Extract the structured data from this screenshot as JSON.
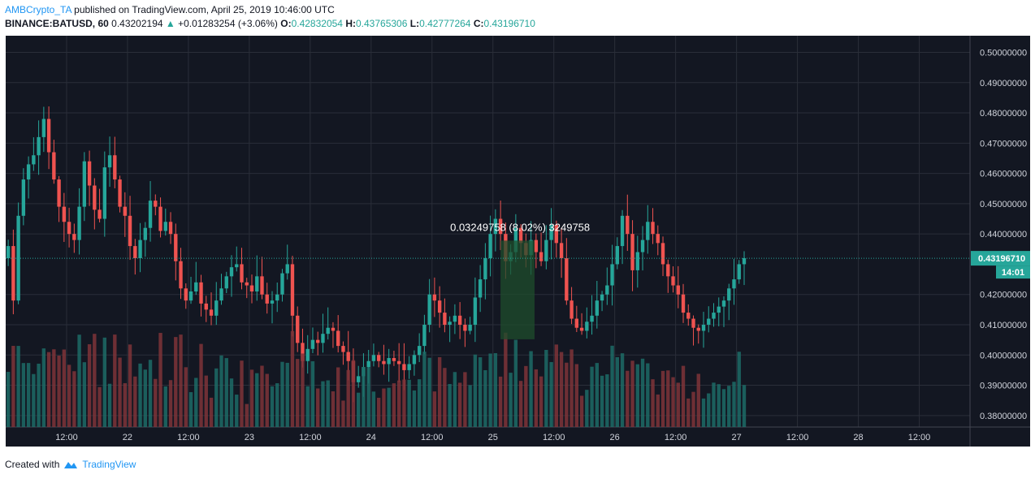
{
  "header": {
    "author": "AMBCrypto_TA",
    "published": "published on TradingView.com, April 25, 2019 10:46:00 UTC",
    "symbol": "BINANCE:BATUSD, 60",
    "last": "0.43202194",
    "change": "+0.01283254 (+3.06%)",
    "o_label": "O:",
    "o": "0.42832054",
    "h_label": "H:",
    "h": "0.43765306",
    "l_label": "L:",
    "l": "0.42777264",
    "c_label": "C:",
    "c": "0.43196710",
    "up_icon": "triangle-up-icon"
  },
  "footer": {
    "created": "Created with",
    "brand": "TradingView",
    "logo_icon": "tradingview-cloud-icon"
  },
  "colors": {
    "background": "#131722",
    "grid": "#2a2e39",
    "up": "#26a69a",
    "down": "#ef5350",
    "up_volume": "#1d6b66",
    "down_volume": "#7f3438",
    "axis_text": "#d1d4dc",
    "price_line": "#26a69a",
    "measure_box": "#1f4d2c"
  },
  "chart_data": {
    "type": "candlestick",
    "y_axis": {
      "range": [
        0.3762,
        0.5055
      ],
      "ticks": [
        "0.50000000",
        "0.49000000",
        "0.48000000",
        "0.47000000",
        "0.46000000",
        "0.45000000",
        "0.44000000",
        "0.42000000",
        "0.41000000",
        "0.40000000",
        "0.39000000",
        "0.38000000"
      ],
      "position": "right"
    },
    "x_axis": {
      "range_hours": [
        0,
        190
      ],
      "ticks": [
        {
          "label": "12:00",
          "hour": 12
        },
        {
          "label": "22",
          "hour": 24
        },
        {
          "label": "12:00",
          "hour": 36
        },
        {
          "label": "23",
          "hour": 48
        },
        {
          "label": "12:00",
          "hour": 60
        },
        {
          "label": "24",
          "hour": 72
        },
        {
          "label": "12:00",
          "hour": 84
        },
        {
          "label": "25",
          "hour": 96
        },
        {
          "label": "12:00",
          "hour": 108
        },
        {
          "label": "26",
          "hour": 120
        },
        {
          "label": "12:00",
          "hour": 132
        },
        {
          "label": "27",
          "hour": 144
        },
        {
          "label": "12:00",
          "hour": 156
        },
        {
          "label": "28",
          "hour": 168
        },
        {
          "label": "12:00",
          "hour": 180
        }
      ]
    },
    "grid": true,
    "last_price": {
      "value": 0.4319671,
      "label": "0.43196710",
      "countdown": "14:01"
    },
    "measure": {
      "start_hour": 97.5,
      "end_hour": 104.2,
      "low": 0.4052,
      "high": 0.4378,
      "label": "0.03249758 (8.02%) 3249758"
    },
    "candles_hourly": {
      "description": "BINANCE:BATUSD 60-minute candles, [open, high, low, close] per hour",
      "close": [
        0.436,
        0.418,
        0.446,
        0.458,
        0.463,
        0.466,
        0.472,
        0.478,
        0.467,
        0.458,
        0.449,
        0.444,
        0.44,
        0.438,
        0.449,
        0.464,
        0.456,
        0.448,
        0.445,
        0.462,
        0.466,
        0.458,
        0.449,
        0.446,
        0.436,
        0.432,
        0.438,
        0.442,
        0.451,
        0.449,
        0.441,
        0.444,
        0.44,
        0.431,
        0.422,
        0.418,
        0.421,
        0.424,
        0.417,
        0.415,
        0.413,
        0.418,
        0.422,
        0.426,
        0.429,
        0.43,
        0.424,
        0.423,
        0.421,
        0.426,
        0.42,
        0.417,
        0.418,
        0.42,
        0.427,
        0.43,
        0.413,
        0.404,
        0.398,
        0.402,
        0.405,
        0.404,
        0.407,
        0.409,
        0.408,
        0.403,
        0.401,
        0.398,
        0.391,
        0.393,
        0.396,
        0.398,
        0.4,
        0.398,
        0.397,
        0.399,
        0.398,
        0.397,
        0.395,
        0.397,
        0.4,
        0.403,
        0.41,
        0.42,
        0.418,
        0.414,
        0.41,
        0.411,
        0.413,
        0.41,
        0.408,
        0.41,
        0.419,
        0.425,
        0.432,
        0.44,
        0.445,
        0.44,
        0.431,
        0.434,
        0.442,
        0.437,
        0.433,
        0.438,
        0.434,
        0.431,
        0.438,
        0.443,
        0.437,
        0.432,
        0.418,
        0.412,
        0.409,
        0.408,
        0.411,
        0.413,
        0.418,
        0.42,
        0.423,
        0.43,
        0.436,
        0.446,
        0.44,
        0.428,
        0.434,
        0.438,
        0.444,
        0.44,
        0.437,
        0.43,
        0.426,
        0.423,
        0.42,
        0.414,
        0.412,
        0.409,
        0.408,
        0.41,
        0.412,
        0.414,
        0.416,
        0.418,
        0.422,
        0.425,
        0.43,
        0.432
      ]
    },
    "volume": {
      "description": "hourly volume bars along the bottom, colored by candle direction"
    }
  }
}
